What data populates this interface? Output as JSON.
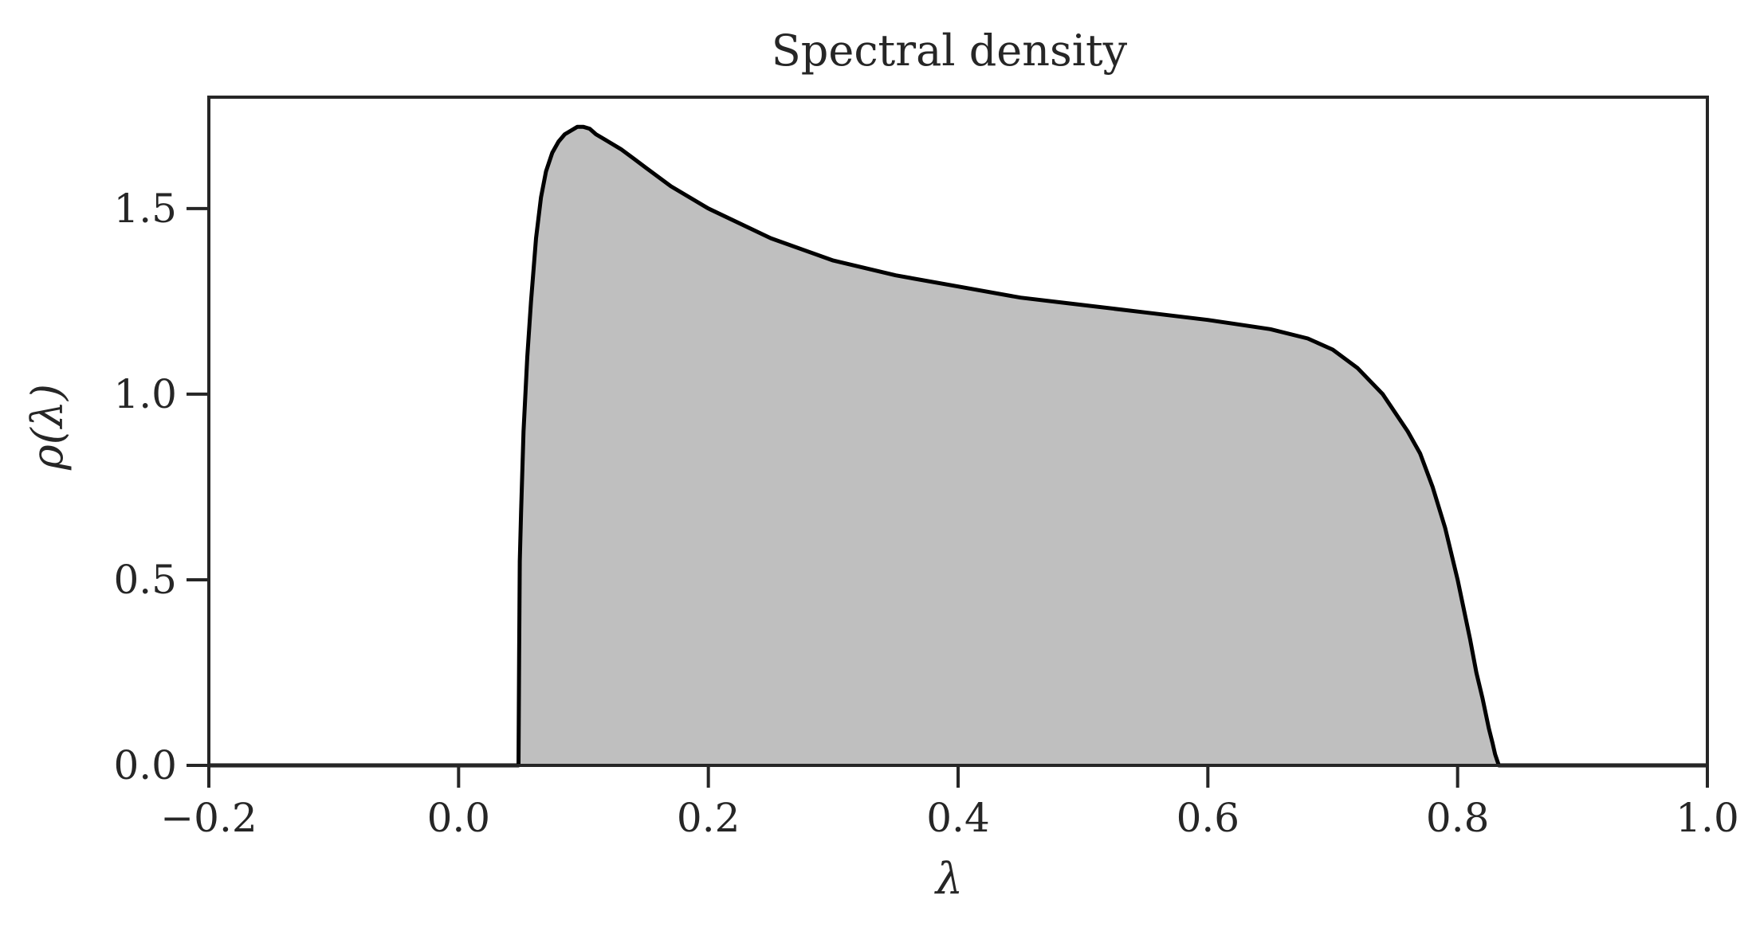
{
  "chart_data": {
    "type": "area",
    "title": "Spectral density",
    "xlabel": "λ",
    "ylabel": "ρ(λ)",
    "xlim": [
      -0.2,
      1.0
    ],
    "ylim": [
      0.0,
      1.8
    ],
    "xticks": [
      -0.2,
      0.0,
      0.2,
      0.4,
      0.6,
      0.8,
      1.0
    ],
    "xtick_labels": [
      "−0.2",
      "0.0",
      "0.2",
      "0.4",
      "0.6",
      "0.8",
      "1.0"
    ],
    "yticks": [
      0.0,
      0.5,
      1.0,
      1.5
    ],
    "ytick_labels": [
      "0.0",
      "0.5",
      "1.0",
      "1.5"
    ],
    "grid": false,
    "colors": {
      "line": "#000000",
      "fill": "#bfbfbf",
      "axes": "#262626"
    },
    "series": [
      {
        "x": [
          -0.2,
          0.048,
          0.0485,
          0.049,
          0.05,
          0.052,
          0.055,
          0.058,
          0.062,
          0.066,
          0.07,
          0.075,
          0.08,
          0.085,
          0.09,
          0.095,
          0.1,
          0.105,
          0.11,
          0.12,
          0.13,
          0.14,
          0.15,
          0.17,
          0.2,
          0.25,
          0.3,
          0.35,
          0.4,
          0.45,
          0.5,
          0.55,
          0.6,
          0.62,
          0.65,
          0.68,
          0.7,
          0.72,
          0.74,
          0.76,
          0.77,
          0.78,
          0.79,
          0.8,
          0.81,
          0.815,
          0.82,
          0.825,
          0.828,
          0.83,
          0.832,
          0.833,
          1.0
        ],
        "y": [
          0.0,
          0.0,
          0.3,
          0.55,
          0.68,
          0.9,
          1.1,
          1.25,
          1.42,
          1.53,
          1.6,
          1.65,
          1.68,
          1.7,
          1.71,
          1.72,
          1.72,
          1.715,
          1.7,
          1.68,
          1.66,
          1.635,
          1.61,
          1.56,
          1.5,
          1.42,
          1.36,
          1.32,
          1.29,
          1.26,
          1.24,
          1.22,
          1.2,
          1.19,
          1.175,
          1.15,
          1.12,
          1.07,
          1.0,
          0.9,
          0.84,
          0.75,
          0.64,
          0.5,
          0.34,
          0.25,
          0.18,
          0.1,
          0.06,
          0.03,
          0.01,
          0.0,
          0.0
        ]
      }
    ]
  }
}
